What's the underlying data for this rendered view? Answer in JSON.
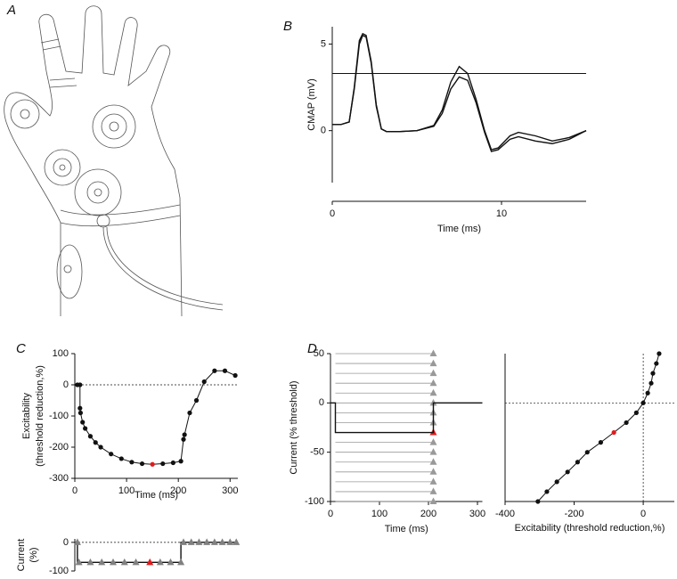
{
  "illustration": {
    "panel": "A"
  },
  "chart_data": [
    {
      "type": "line",
      "panel": "B",
      "xlabel": "Time (ms)",
      "ylabel": [
        "CMAP (mV)"
      ],
      "x": [
        0,
        0.5,
        1,
        1.3,
        1.6,
        1.8,
        2,
        2.3,
        2.6,
        2.9,
        3.2,
        4,
        5,
        6,
        6.5,
        7,
        7.5,
        8,
        8.5,
        9,
        9.4,
        9.8,
        10.5,
        11,
        12,
        13,
        14,
        15
      ],
      "series": [
        {
          "color": "#111111",
          "values": [
            0.35,
            0.35,
            0.5,
            2.5,
            5.2,
            5.6,
            5.5,
            4.0,
            1.5,
            0.1,
            -0.05,
            -0.05,
            0,
            0.3,
            1.2,
            2.8,
            3.7,
            3.3,
            1.8,
            0,
            -1.1,
            -1.0,
            -0.3,
            -0.1,
            -0.3,
            -0.6,
            -0.4,
            0
          ]
        },
        {
          "color": "#111111",
          "values": [
            0.35,
            0.35,
            0.5,
            2.4,
            5.0,
            5.5,
            5.4,
            3.9,
            1.4,
            0.1,
            -0.05,
            -0.05,
            0,
            0.25,
            1.0,
            2.4,
            3.1,
            2.9,
            1.6,
            -0.1,
            -1.2,
            -1.1,
            -0.5,
            -0.35,
            -0.6,
            -0.75,
            -0.5,
            0
          ]
        }
      ],
      "threshold": 3.3,
      "xlim": [
        0,
        15
      ],
      "xticks": [
        0,
        10
      ],
      "ylim": [
        -3,
        6
      ],
      "yticks": [
        0,
        5
      ]
    },
    {
      "type": "line",
      "panel": "C",
      "xlabel": "Time (ms)",
      "ylabel": [
        "Excitability",
        "(threshold reduction,%)"
      ],
      "x": [
        5,
        10,
        10,
        11,
        15,
        20,
        30,
        40,
        50,
        70,
        90,
        110,
        130,
        150,
        170,
        190,
        205,
        210,
        212,
        222,
        235,
        250,
        270,
        290,
        310
      ],
      "series": [
        {
          "color": "#111111",
          "marker": "circle",
          "highlight": {
            "index": 13,
            "color": "#e31a1c"
          },
          "values": [
            0,
            0,
            -75,
            -90,
            -120,
            -140,
            -165,
            -185,
            -200,
            -222,
            -237,
            -248,
            -253,
            -255,
            -253,
            -250,
            -245,
            -175,
            -160,
            -90,
            -50,
            10,
            45,
            45,
            30
          ]
        }
      ],
      "dashed_y": 0,
      "xlim": [
        0,
        315
      ],
      "xticks": [
        0,
        100,
        200,
        300
      ],
      "ylim": [
        -300,
        100
      ],
      "yticks": [
        -300,
        -200,
        -100,
        0,
        100
      ]
    },
    {
      "type": "line",
      "ylabel": [
        "Current",
        "(%)"
      ],
      "series": [
        {
          "color": "#111111",
          "x": [
            5,
            5,
            205,
            205,
            310
          ],
          "values": [
            0,
            -70,
            -70,
            0,
            0
          ]
        },
        {
          "color": "#808080",
          "marker": "triangle",
          "line": false,
          "highlight": {
            "index": 7,
            "color": "#e31a1c"
          },
          "x": [
            5,
            8,
            30,
            52,
            74,
            96,
            118,
            145,
            165,
            185,
            205,
            210,
            225,
            240,
            255,
            270,
            285,
            300,
            312
          ],
          "values": [
            0,
            -70,
            -70,
            -70,
            -70,
            -70,
            -70,
            -70,
            -70,
            -70,
            -70,
            0,
            0,
            0,
            0,
            0,
            0,
            0,
            0
          ]
        }
      ],
      "dashed_y": 0,
      "xlim": [
        0,
        315
      ],
      "ylim": [
        -100,
        12
      ],
      "yticks": [
        -100,
        0
      ]
    },
    {
      "type": "line",
      "panel": "D",
      "xlabel": "Time (ms)",
      "ylabel": [
        "Current (% threshold)"
      ],
      "series": [
        {
          "color": "#999999",
          "marker": "triangle",
          "line": false,
          "span": [
            10,
            210
          ],
          "highlight": {
            "index": 8,
            "color": "#e31a1c"
          },
          "x": [
            210,
            210,
            210,
            210,
            210,
            210,
            210,
            210,
            210,
            210,
            210,
            210,
            210,
            210,
            210,
            210
          ],
          "values": [
            50,
            40,
            30,
            20,
            10,
            0,
            -10,
            -20,
            -30,
            -40,
            -50,
            -60,
            -70,
            -80,
            -90,
            -100
          ]
        },
        {
          "color": "#111111",
          "x": [
            0,
            10,
            10,
            210,
            210,
            310
          ],
          "values": [
            0,
            0,
            -30,
            -30,
            0,
            0
          ]
        }
      ],
      "xlim": [
        0,
        310
      ],
      "xticks": [
        0,
        100,
        200,
        300
      ],
      "ylim": [
        -100,
        50
      ],
      "yticks": [
        -100,
        -50,
        0,
        50
      ]
    },
    {
      "type": "line",
      "xlabel": "Excitability (threshold reduction,%)",
      "x": [
        46,
        38,
        28,
        23,
        13,
        0,
        -20,
        -49,
        -85,
        -123,
        -162,
        -190,
        -219,
        -250,
        -279,
        -305
      ],
      "series": [
        {
          "color": "#111111",
          "marker": "circle",
          "highlight": {
            "index": 8,
            "color": "#e31a1c"
          },
          "values": [
            50,
            40,
            30,
            20,
            10,
            0,
            -10,
            -20,
            -30,
            -40,
            -50,
            -60,
            -70,
            -80,
            -90,
            -100
          ]
        }
      ],
      "dashed_x": 0,
      "dashed_y": 0,
      "xlim": [
        -400,
        90
      ],
      "xticks": [
        -400,
        -200,
        0
      ],
      "ylim": [
        -100,
        50
      ]
    }
  ]
}
